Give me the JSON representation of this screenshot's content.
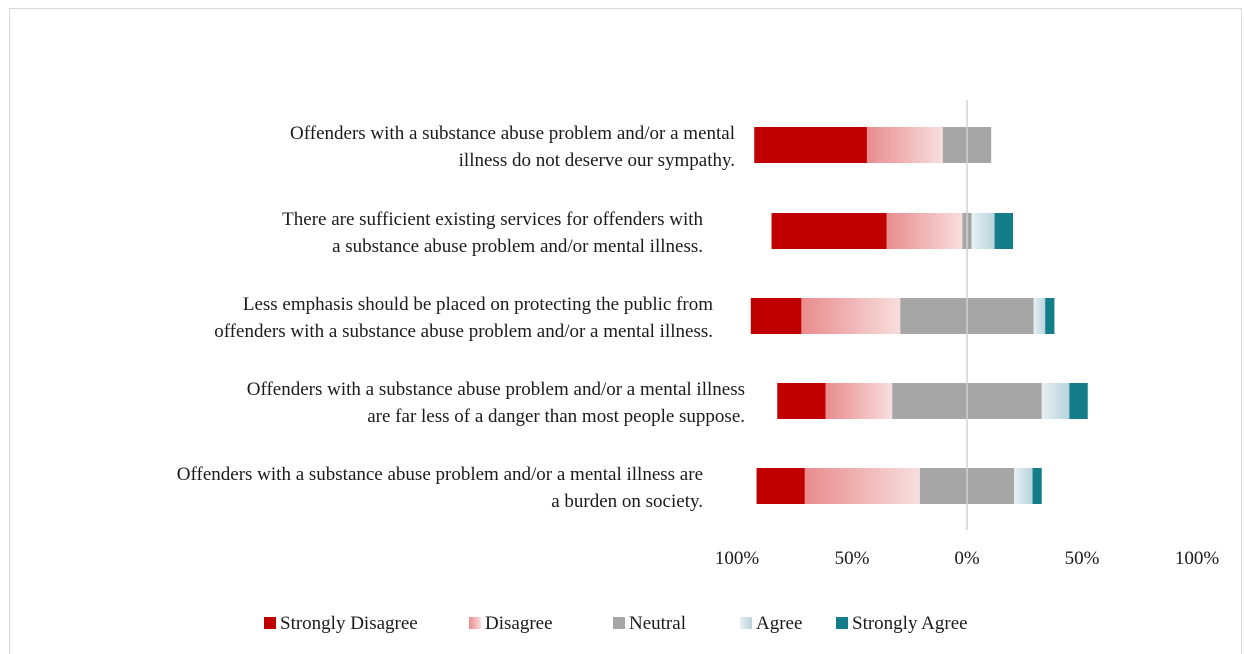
{
  "chart_data": {
    "type": "bar",
    "subtype": "diverging-stacked-horizontal",
    "title": "",
    "xlabel": "",
    "ylabel": "",
    "xlim": [
      -100,
      100
    ],
    "x_ticks": [
      "100%",
      "50%",
      "0%",
      "50%",
      "100%"
    ],
    "grid": false,
    "legend_position": "bottom",
    "categories": [
      {
        "line1": "Offenders with a substance abuse problem and/or a mental",
        "line2": "illness do not deserve our sympathy."
      },
      {
        "line1": "There are sufficient existing services for offenders with",
        "line2": "a substance abuse problem and/or mental illness."
      },
      {
        "line1": "Less emphasis should be placed on protecting the public from",
        "line2": "offenders with a substance abuse problem and/or a mental illness."
      },
      {
        "line1": "Offenders with a substance abuse problem and/or a mental illness",
        "line2": "are far less of a danger than most people suppose."
      },
      {
        "line1": "Offenders with a substance abuse problem and/or a mental illness are",
        "line2": "a burden on society."
      }
    ],
    "series": [
      {
        "name": "Strongly Disagree",
        "color": "#c00000",
        "values": [
          49,
          50,
          22,
          21,
          21
        ]
      },
      {
        "name": "Disagree",
        "color": "#ef9fa0",
        "values": [
          33,
          33,
          43,
          29,
          50
        ]
      },
      {
        "name": "Neutral",
        "color": "#a6a6a6",
        "values": [
          21,
          4,
          58,
          65,
          41
        ]
      },
      {
        "name": "Agree",
        "color": "#c5dde4",
        "values": [
          0,
          10,
          5,
          12,
          8
        ]
      },
      {
        "name": "Strongly Agree",
        "color": "#137d8a",
        "values": [
          0,
          8,
          4,
          8,
          4
        ]
      }
    ]
  }
}
